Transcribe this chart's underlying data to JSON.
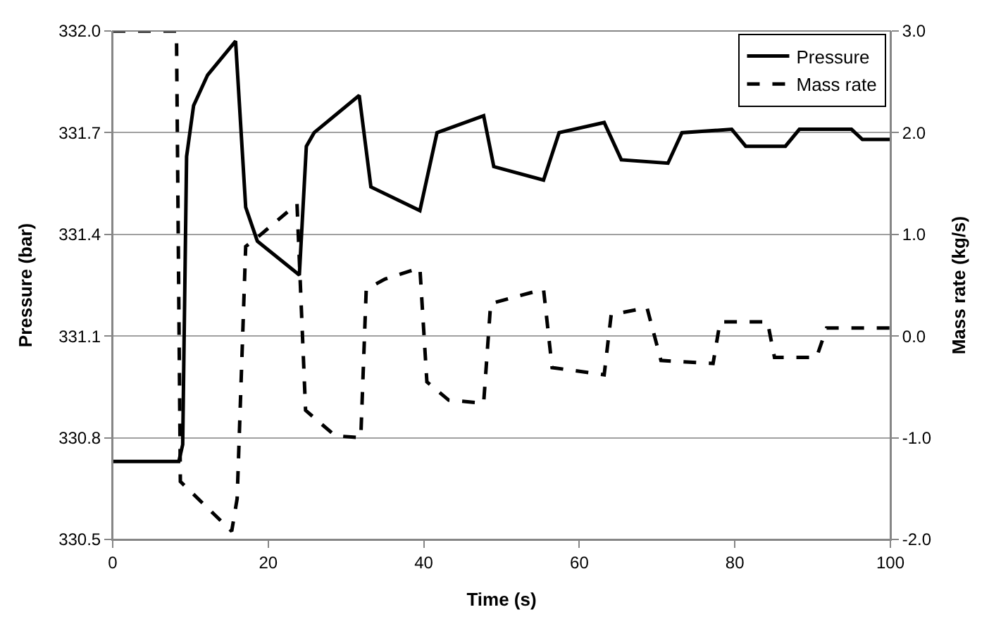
{
  "chart_data": {
    "type": "line",
    "xlabel": "Time (s)",
    "ylabel": "Pressure (bar)",
    "y2label": "Mass rate (kg/s)",
    "xlim": [
      0,
      100
    ],
    "xticks": [
      0,
      20,
      40,
      60,
      80,
      100
    ],
    "ylim": [
      330.5,
      332.0
    ],
    "yticks": [
      {
        "value": 330.5,
        "label": "330.5"
      },
      {
        "value": 330.8,
        "label": "330.8"
      },
      {
        "value": 331.1,
        "label": "331.1"
      },
      {
        "value": 331.4,
        "label": "331.4"
      },
      {
        "value": 331.7,
        "label": "331.7"
      },
      {
        "value": 332.0,
        "label": "332.0"
      }
    ],
    "y2lim": [
      -2.0,
      3.0
    ],
    "y2ticks": [
      {
        "value": -2,
        "label": "-2.0"
      },
      {
        "value": -1,
        "label": "-1.0"
      },
      {
        "value": 0,
        "label": "0.0"
      },
      {
        "value": 1,
        "label": "1.0"
      },
      {
        "value": 2,
        "label": "2.0"
      },
      {
        "value": 3,
        "label": "3.0"
      }
    ],
    "grid": "y",
    "legend": "top right",
    "marker": "none",
    "series": [
      {
        "name": "Pressure",
        "color": "#000000",
        "line_style": "solid",
        "x": [
          0,
          8.5,
          9,
          9.5,
          10.4,
          12.2,
          15.8,
          17.1,
          18.6,
          24,
          24.9,
          25.9,
          31.7,
          33.2,
          39.5,
          41.7,
          47.7,
          49,
          55.4,
          57.4,
          63.2,
          65.4,
          71.4,
          73.2,
          79.6,
          81.4,
          86.5,
          88.3,
          95,
          96.4,
          100
        ],
        "values": [
          330.73,
          330.73,
          330.78,
          331.63,
          331.78,
          331.87,
          331.97,
          331.48,
          331.38,
          331.28,
          331.66,
          331.7,
          331.81,
          331.54,
          331.47,
          331.7,
          331.75,
          331.6,
          331.56,
          331.7,
          331.73,
          331.62,
          331.61,
          331.7,
          331.71,
          331.66,
          331.66,
          331.71,
          331.71,
          331.68,
          331.68
        ]
      },
      {
        "name": "Mass rate",
        "color": "#000000",
        "line_style": "dashed",
        "axis": "y2",
        "x": [
          0,
          8.2,
          8.7,
          15.3,
          16,
          17.1,
          18.6,
          23.7,
          24.8,
          28.6,
          31.9,
          32.6,
          35,
          39.5,
          40.4,
          43.2,
          47.7,
          48.6,
          55.4,
          56.5,
          63.2,
          64.1,
          68.7,
          70.5,
          77.2,
          78.1,
          84.2,
          85.1,
          90.5,
          91.8,
          100
        ],
        "values": [
          3.0,
          3.0,
          -1.43,
          -1.92,
          -1.6,
          0.88,
          0.97,
          1.3,
          -0.73,
          -0.98,
          -1.0,
          0.46,
          0.56,
          0.67,
          -0.45,
          -0.63,
          -0.66,
          0.32,
          0.46,
          -0.31,
          -0.38,
          0.21,
          0.28,
          -0.24,
          -0.27,
          0.14,
          0.14,
          -0.21,
          -0.21,
          0.08,
          0.08
        ]
      }
    ]
  }
}
